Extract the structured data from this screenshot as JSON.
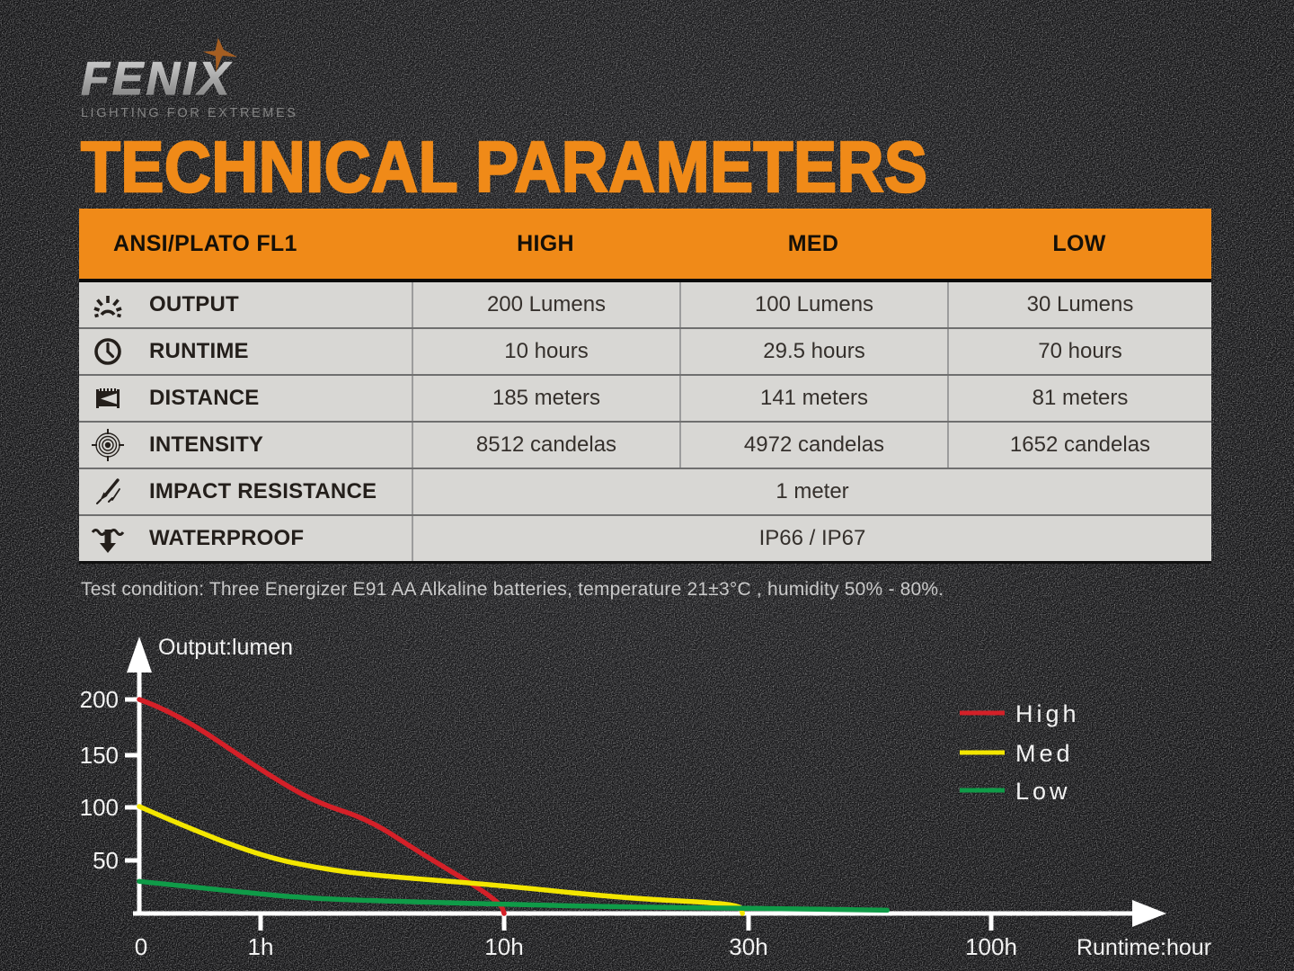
{
  "brand": {
    "name": "FENIX",
    "tagline": "LIGHTING FOR EXTREMES",
    "star_color": "#a55e22"
  },
  "page_title": "TECHNICAL PARAMETERS",
  "colors": {
    "accent_orange": "#f08a18",
    "table_row_bg": "#d8d7d4",
    "background": "#151517",
    "axis_white": "#ffffff",
    "high_red": "#d42028",
    "med_yellow": "#f3e600",
    "low_green": "#0f9b48"
  },
  "table": {
    "header": {
      "col0": "ANSI/PLATO FL1",
      "col1": "HIGH",
      "col2": "MED",
      "col3": "LOW"
    },
    "rows": [
      {
        "icon": "output-icon",
        "label": "OUTPUT",
        "values": [
          "200 Lumens",
          "100 Lumens",
          "30 Lumens"
        ]
      },
      {
        "icon": "runtime-icon",
        "label": "RUNTIME",
        "values": [
          "10 hours",
          "29.5 hours",
          "70 hours"
        ]
      },
      {
        "icon": "distance-icon",
        "label": "DISTANCE",
        "values": [
          "185 meters",
          "141 meters",
          "81 meters"
        ]
      },
      {
        "icon": "intensity-icon",
        "label": "INTENSITY",
        "values": [
          "8512 candelas",
          "4972 candelas",
          "1652 candelas"
        ]
      },
      {
        "icon": "impact-icon",
        "label": "IMPACT RESISTANCE",
        "values": [
          "1 meter"
        ],
        "span": true
      },
      {
        "icon": "waterproof-icon",
        "label": "WATERPROOF",
        "values": [
          "IP66 / IP67"
        ],
        "span": true
      }
    ]
  },
  "test_condition": "Test condition: Three Energizer E91 AA Alkaline batteries, temperature 21±3°C , humidity 50% - 80%.",
  "chart_data": {
    "type": "line",
    "ylabel": "Output:lumen",
    "xlabel": "Runtime:hour",
    "y_ticks": [
      "200",
      "150",
      "100",
      "50"
    ],
    "x_ticks": [
      "0",
      "1h",
      "10h",
      "30h",
      "100h"
    ],
    "x_scale": "piecewise-linear hours, equal pixel spacing between tick values 0, 1, 10, 30, 100",
    "x_breakpoints_hours": [
      0,
      1,
      10,
      30,
      100
    ],
    "ylim": [
      0,
      230
    ],
    "grid": false,
    "legend_position": "right",
    "series": [
      {
        "name": "High",
        "color": "#d42028",
        "start_lumens": 200,
        "runtime_hours": 10,
        "points": [
          [
            0,
            200
          ],
          [
            0.3,
            188
          ],
          [
            1,
            134
          ],
          [
            3,
            104
          ],
          [
            5,
            88
          ],
          [
            7,
            55
          ],
          [
            9,
            25
          ],
          [
            9.9,
            8
          ],
          [
            10,
            0
          ]
        ]
      },
      {
        "name": "Med",
        "color": "#f3e600",
        "start_lumens": 100,
        "runtime_hours": 29.5,
        "points": [
          [
            0,
            100
          ],
          [
            0.4,
            80
          ],
          [
            1,
            54
          ],
          [
            3,
            43
          ],
          [
            5,
            36
          ],
          [
            10,
            26
          ],
          [
            20,
            14
          ],
          [
            29.3,
            9
          ],
          [
            29.5,
            0
          ]
        ]
      },
      {
        "name": "Low",
        "color": "#0f9b48",
        "start_lumens": 30,
        "runtime_hours": 70,
        "points": [
          [
            0,
            30
          ],
          [
            1,
            18
          ],
          [
            3,
            14
          ],
          [
            5,
            12
          ],
          [
            10,
            8.5
          ],
          [
            20,
            6
          ],
          [
            30,
            5
          ],
          [
            70,
            3
          ]
        ]
      }
    ]
  }
}
